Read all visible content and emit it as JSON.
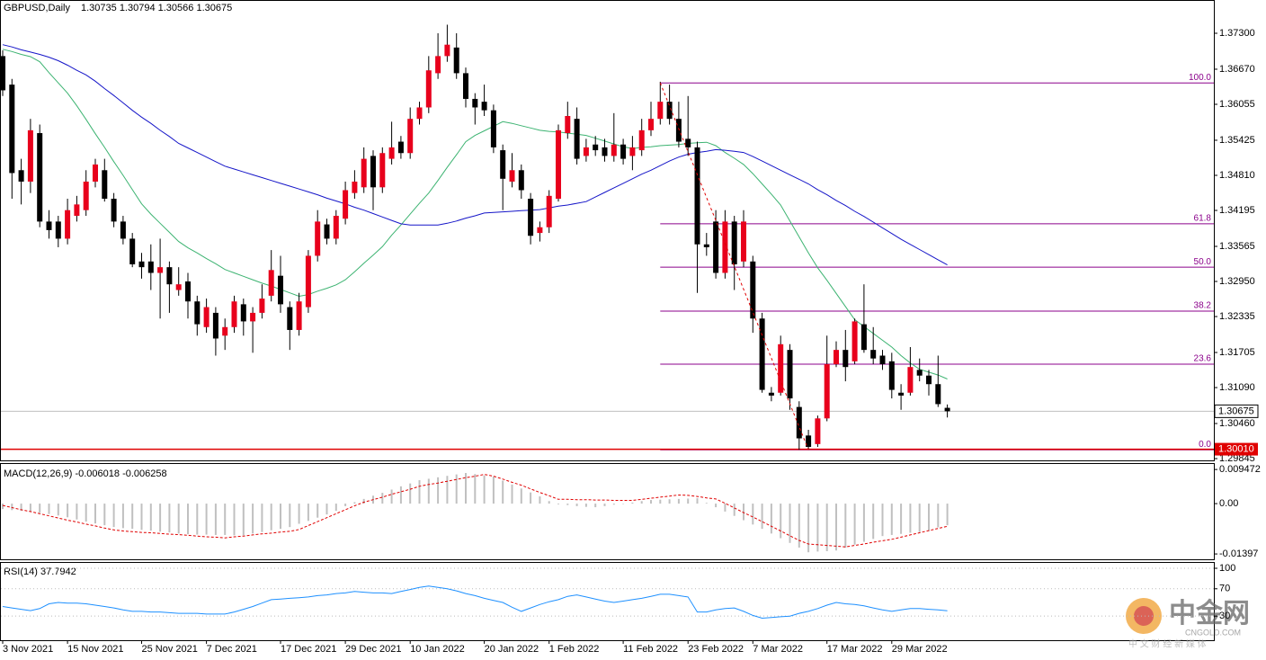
{
  "chart_data": [
    {
      "type": "candlestick",
      "title": "GBPUSD,Daily",
      "subtitle": "1.30735 1.30794 1.30566 1.30675",
      "categories": [
        "3 Nov 2021",
        null,
        null,
        null,
        null,
        null,
        null,
        "15 Nov 2021",
        null,
        null,
        null,
        null,
        null,
        null,
        null,
        "25 Nov 2021",
        null,
        null,
        null,
        null,
        null,
        null,
        "7 Dec 2021",
        null,
        null,
        null,
        null,
        null,
        null,
        null,
        "17 Dec 2021",
        null,
        null,
        null,
        null,
        null,
        null,
        "29 Dec 2021",
        null,
        null,
        null,
        null,
        null,
        null,
        "10 Jan 2022",
        null,
        null,
        null,
        null,
        null,
        null,
        null,
        "20 Jan 2022",
        null,
        null,
        null,
        null,
        null,
        null,
        "1 Feb 2022",
        null,
        null,
        null,
        null,
        null,
        null,
        null,
        "11 Feb 2022",
        null,
        null,
        null,
        null,
        null,
        null,
        "23 Feb 2022",
        null,
        null,
        null,
        null,
        null,
        null,
        "7 Mar 2022",
        null,
        null,
        null,
        null,
        null,
        null,
        null,
        "17 Mar 2022",
        null,
        null,
        null,
        null,
        null,
        null,
        "29 Mar 2022",
        null,
        null,
        null,
        null,
        null,
        null
      ],
      "open": [
        1.369,
        1.364,
        1.349,
        1.347,
        1.3555,
        1.34,
        1.34,
        1.337,
        1.341,
        1.342,
        1.347,
        1.349,
        1.344,
        1.34,
        1.337,
        1.333,
        1.333,
        1.331,
        1.332,
        1.328,
        1.3295,
        1.326,
        1.3215,
        1.324,
        1.32,
        1.3215,
        1.3255,
        1.3225,
        1.324,
        1.327,
        1.3305,
        1.325,
        1.321,
        1.325,
        1.334,
        1.3395,
        1.337,
        1.3405,
        1.345,
        1.346,
        1.3515,
        1.346,
        1.351,
        1.354,
        1.352,
        1.358,
        1.36,
        1.366,
        1.369,
        1.3705,
        1.366,
        1.3615,
        1.361,
        1.3595,
        1.3525,
        1.347,
        1.349,
        1.344,
        1.338,
        1.339,
        1.344,
        1.3555,
        1.358,
        1.3515,
        1.3535,
        1.353,
        1.3515,
        1.3535,
        1.3515,
        1.3525,
        1.356,
        1.358,
        1.361,
        1.358,
        1.3545,
        1.353,
        1.336,
        1.34,
        1.331,
        1.34,
        1.333,
        1.333,
        1.323,
        1.31,
        1.31,
        1.3175,
        1.3075,
        1.3025,
        1.301,
        1.3055,
        1.315,
        1.3175,
        1.3155,
        1.322,
        1.3175,
        1.3165,
        1.3155,
        1.31,
        1.31,
        1.314,
        1.313,
        1.3115,
        1.30735
      ],
      "high": [
        1.37,
        1.365,
        1.351,
        1.358,
        1.357,
        1.342,
        1.341,
        1.344,
        1.3445,
        1.349,
        1.351,
        1.351,
        1.345,
        1.341,
        1.338,
        1.3345,
        1.336,
        1.337,
        1.333,
        1.332,
        1.331,
        1.327,
        1.3265,
        1.325,
        1.323,
        1.327,
        1.3265,
        1.325,
        1.329,
        1.335,
        1.334,
        1.326,
        1.3275,
        1.335,
        1.342,
        1.3405,
        1.342,
        1.347,
        1.349,
        1.353,
        1.3525,
        1.353,
        1.3575,
        1.355,
        1.36,
        1.361,
        1.369,
        1.373,
        1.3745,
        1.373,
        1.367,
        1.3625,
        1.364,
        1.3605,
        1.3535,
        1.352,
        1.35,
        1.345,
        1.34,
        1.3455,
        1.357,
        1.361,
        1.36,
        1.3545,
        1.355,
        1.3545,
        1.359,
        1.3545,
        1.355,
        1.358,
        1.361,
        1.3645,
        1.364,
        1.361,
        1.362,
        1.354,
        1.338,
        1.342,
        1.342,
        1.341,
        1.342,
        1.334,
        1.324,
        1.311,
        1.32,
        1.3185,
        1.3085,
        1.3035,
        1.306,
        1.32,
        1.319,
        1.321,
        1.323,
        1.329,
        1.3215,
        1.3175,
        1.317,
        1.3115,
        1.318,
        1.316,
        1.314,
        1.3165,
        1.30794
      ],
      "low": [
        1.362,
        1.344,
        1.343,
        1.345,
        1.339,
        1.337,
        1.3355,
        1.336,
        1.34,
        1.341,
        1.346,
        1.3435,
        1.339,
        1.336,
        1.332,
        1.33,
        1.328,
        1.323,
        1.324,
        1.327,
        1.323,
        1.32,
        1.3205,
        1.3165,
        1.3175,
        1.3205,
        1.32,
        1.317,
        1.323,
        1.326,
        1.324,
        1.3175,
        1.32,
        1.324,
        1.333,
        1.336,
        1.336,
        1.3395,
        1.344,
        1.345,
        1.342,
        1.345,
        1.35,
        1.351,
        1.351,
        1.357,
        1.359,
        1.365,
        1.368,
        1.365,
        1.36,
        1.357,
        1.3585,
        1.352,
        1.342,
        1.346,
        1.344,
        1.336,
        1.3365,
        1.338,
        1.3435,
        1.3545,
        1.35,
        1.3505,
        1.3515,
        1.3505,
        1.3505,
        1.35,
        1.349,
        1.3515,
        1.355,
        1.357,
        1.357,
        1.353,
        1.3515,
        1.3275,
        1.334,
        1.33,
        1.33,
        1.328,
        1.332,
        1.3205,
        1.31,
        1.3085,
        1.3095,
        1.307,
        1.3,
        1.3,
        1.3005,
        1.305,
        1.3145,
        1.312,
        1.315,
        1.317,
        1.315,
        1.314,
        1.309,
        1.307,
        1.3095,
        1.312,
        1.3095,
        1.3075,
        1.30566
      ],
      "close": [
        1.363,
        1.3485,
        1.347,
        1.356,
        1.34,
        1.3385,
        1.337,
        1.342,
        1.343,
        1.347,
        1.35,
        1.344,
        1.34,
        1.337,
        1.3325,
        1.332,
        1.331,
        1.332,
        1.329,
        1.329,
        1.326,
        1.322,
        1.325,
        1.3195,
        1.3215,
        1.326,
        1.3225,
        1.324,
        1.3265,
        1.3315,
        1.3255,
        1.321,
        1.326,
        1.334,
        1.34,
        1.337,
        1.341,
        1.3455,
        1.347,
        1.351,
        1.346,
        1.352,
        1.353,
        1.352,
        1.358,
        1.36,
        1.3665,
        1.369,
        1.371,
        1.366,
        1.3615,
        1.36,
        1.3595,
        1.353,
        1.3475,
        1.349,
        1.3455,
        1.3375,
        1.339,
        1.3445,
        1.356,
        1.3585,
        1.351,
        1.353,
        1.3525,
        1.3515,
        1.3535,
        1.351,
        1.353,
        1.356,
        1.358,
        1.361,
        1.358,
        1.354,
        1.353,
        1.336,
        1.3355,
        1.331,
        1.34,
        1.3325,
        1.34,
        1.323,
        1.3105,
        1.3095,
        1.3185,
        1.309,
        1.302,
        1.3005,
        1.3055,
        1.315,
        1.3175,
        1.3145,
        1.3225,
        1.3175,
        1.316,
        1.315,
        1.3105,
        1.3095,
        1.3145,
        1.313,
        1.3115,
        1.308,
        1.30675
      ],
      "up_color": "#e8001c",
      "down_color": "#000000",
      "moving_averages": [
        {
          "color": "#3cb371",
          "values": [
            1.3702,
            1.3698,
            1.3693,
            1.3689,
            1.368,
            1.3661,
            1.3643,
            1.3625,
            1.3603,
            1.3579,
            1.3554,
            1.353,
            1.3505,
            1.3481,
            1.3456,
            1.3431,
            1.3413,
            1.3397,
            1.3381,
            1.3365,
            1.3354,
            1.3345,
            1.3335,
            1.3326,
            1.3316,
            1.331,
            1.3304,
            1.3298,
            1.3292,
            1.3287,
            1.3281,
            1.3275,
            1.3269,
            1.3272,
            1.3278,
            1.3283,
            1.3289,
            1.3298,
            1.3312,
            1.3327,
            1.3341,
            1.3356,
            1.3376,
            1.3394,
            1.3413,
            1.3432,
            1.345,
            1.3472,
            1.3495,
            1.3517,
            1.354,
            1.3551,
            1.3559,
            1.3567,
            1.3575,
            1.3572,
            1.3568,
            1.3564,
            1.356,
            1.3558,
            1.3557,
            1.3555,
            1.3553,
            1.3551,
            1.3546,
            1.3541,
            1.3536,
            1.3531,
            1.3528,
            1.353,
            1.3531,
            1.3533,
            1.3534,
            1.3535,
            1.3537,
            1.3538,
            1.3539,
            1.3533,
            1.3521,
            1.3511,
            1.35,
            1.3484,
            1.3466,
            1.3448,
            1.3429,
            1.3401,
            1.3373,
            1.3345,
            1.3319,
            1.3297,
            1.3274,
            1.3251,
            1.3228,
            1.3216,
            1.3204,
            1.3192,
            1.318,
            1.3165,
            1.3152,
            1.3141,
            1.3136,
            1.3131,
            1.3124
          ]
        },
        {
          "color": "#1515c8",
          "values": [
            1.371,
            1.3706,
            1.3701,
            1.3697,
            1.3693,
            1.3688,
            1.3682,
            1.3674,
            1.3665,
            1.3657,
            1.3646,
            1.3633,
            1.3621,
            1.3608,
            1.3595,
            1.3583,
            1.3572,
            1.356,
            1.3549,
            1.3537,
            1.3529,
            1.3521,
            1.3513,
            1.3505,
            1.3497,
            1.3492,
            1.3487,
            1.3482,
            1.3477,
            1.3472,
            1.3467,
            1.3462,
            1.3457,
            1.3452,
            1.3447,
            1.3441,
            1.3436,
            1.3431,
            1.3425,
            1.342,
            1.3414,
            1.3408,
            1.3402,
            1.3396,
            1.3394,
            1.3394,
            1.3394,
            1.3394,
            1.3397,
            1.3401,
            1.3406,
            1.341,
            1.3415,
            1.3416,
            1.3417,
            1.3418,
            1.3419,
            1.342,
            1.3421,
            1.3424,
            1.3427,
            1.3429,
            1.3432,
            1.3435,
            1.3443,
            1.3451,
            1.3459,
            1.3467,
            1.3475,
            1.3483,
            1.349,
            1.3498,
            1.3506,
            1.3513,
            1.3518,
            1.3521,
            1.3523,
            1.3526,
            1.3525,
            1.3523,
            1.3521,
            1.3514,
            1.3506,
            1.3498,
            1.349,
            1.3482,
            1.3474,
            1.3466,
            1.3456,
            1.3447,
            1.3437,
            1.3428,
            1.3418,
            1.3409,
            1.3399,
            1.3389,
            1.3379,
            1.3369,
            1.336,
            1.3351,
            1.3342,
            1.3333,
            1.3324
          ]
        }
      ],
      "fibonacci": {
        "color": "#8b008b",
        "levels": [
          {
            "value": 1.3643,
            "label": "100.0"
          },
          {
            "value": 1.3396,
            "label": "61.8"
          },
          {
            "value": 1.332,
            "label": "50.0"
          },
          {
            "value": 1.3243,
            "label": "38.2"
          },
          {
            "value": 1.315,
            "label": "23.6"
          },
          {
            "value": 1.3,
            "label": "0.0"
          }
        ]
      },
      "trend_line": {
        "color": "#e00000",
        "values": [
          1.3643,
          1.3
        ]
      },
      "current_price": {
        "value": 1.30675,
        "label": "1.30675"
      },
      "marked_level": {
        "value": 1.3001,
        "label": "1.30010",
        "color": "#e00000"
      },
      "ylim": [
        1.29814,
        1.37883
      ],
      "yticks": [
        {
          "value": 1.373,
          "label": "1.37300"
        },
        {
          "value": 1.3667,
          "label": "1.36670"
        },
        1.36055,
        1.35425,
        {
          "value": 1.3481,
          "label": "1.34810"
        },
        1.34195,
        1.33565,
        {
          "value": 1.3295,
          "label": "1.32950"
        },
        1.32335,
        1.31705,
        {
          "value": 1.3109,
          "label": "1.31090"
        },
        {
          "value": 1.3046,
          "label": "1.30460"
        },
        1.29845
      ]
    },
    {
      "type": "macd",
      "title": "MACD(12,26,9) -0.006018 -0.006258",
      "values": [
        -0.0015,
        -0.0018,
        -0.002,
        -0.0023,
        -0.0026,
        -0.0029,
        -0.0033,
        -0.0038,
        -0.0044,
        -0.005,
        -0.0055,
        -0.006,
        -0.0065,
        -0.0068,
        -0.007,
        -0.0073,
        -0.0075,
        -0.0078,
        -0.008,
        -0.0083,
        -0.0085,
        -0.0086,
        -0.0086,
        -0.0087,
        -0.0087,
        -0.0088,
        -0.0088,
        -0.0083,
        -0.0079,
        -0.0074,
        -0.007,
        -0.0065,
        -0.0056,
        -0.0048,
        -0.0039,
        -0.003,
        -0.002,
        -0.0007,
        0.0004,
        0.0013,
        0.0022,
        0.003,
        0.0039,
        0.0048,
        0.0056,
        0.0065,
        0.0069,
        0.0073,
        0.0077,
        0.0081,
        0.0085,
        0.0082,
        0.0078,
        0.0075,
        0.0064,
        0.0053,
        0.0042,
        0.0031,
        0.002,
        0.0007,
        -0.0002,
        -0.0004,
        -0.0007,
        -0.0009,
        -0.001,
        -0.0007,
        -0.0003,
        0,
        0.0003,
        0.0007,
        0.001,
        0.0011,
        0.0012,
        0.0013,
        0.0014,
        0.0015,
        0.0002,
        -0.001,
        -0.0022,
        -0.0034,
        -0.0046,
        -0.0058,
        -0.007,
        -0.0083,
        -0.0096,
        -0.0109,
        -0.0122,
        -0.0135,
        -0.0133,
        -0.0132,
        -0.013,
        -0.0122,
        -0.0114,
        -0.0106,
        -0.0098,
        -0.009,
        -0.0087,
        -0.0084,
        -0.0081,
        -0.0079,
        -0.0076,
        -0.0066,
        -0.006
      ],
      "color": "#c0c0c0",
      "signal": {
        "color": "#e00000",
        "values": [
          -0.0005,
          -0.0011,
          -0.0017,
          -0.0022,
          -0.0028,
          -0.0034,
          -0.004,
          -0.0046,
          -0.0051,
          -0.0057,
          -0.0062,
          -0.0068,
          -0.0073,
          -0.0076,
          -0.0078,
          -0.008,
          -0.0081,
          -0.0083,
          -0.0085,
          -0.0086,
          -0.0088,
          -0.009,
          -0.0092,
          -0.0093,
          -0.0095,
          -0.0092,
          -0.009,
          -0.0087,
          -0.0084,
          -0.0082,
          -0.0079,
          -0.0077,
          -0.0072,
          -0.0061,
          -0.005,
          -0.0039,
          -0.0028,
          -0.0017,
          -0.0006,
          0.0004,
          0.0011,
          0.0018,
          0.0026,
          0.0033,
          0.004,
          0.0048,
          0.0053,
          0.0057,
          0.0062,
          0.0067,
          0.0072,
          0.0076,
          0.0081,
          0.0076,
          0.0068,
          0.0059,
          0.0051,
          0.0041,
          0.0031,
          0.0022,
          0.0012,
          0.0012,
          0.0011,
          0.0011,
          0.001,
          0.001,
          0.0009,
          0.0009,
          0.0009,
          0.0012,
          0.0015,
          0.0018,
          0.0021,
          0.0024,
          0.0023,
          0.002,
          0.0016,
          0.0013,
          0.0001,
          -0.0012,
          -0.0025,
          -0.0037,
          -0.005,
          -0.0063,
          -0.0076,
          -0.0089,
          -0.0102,
          -0.0112,
          -0.0114,
          -0.0116,
          -0.0118,
          -0.012,
          -0.0116,
          -0.0112,
          -0.0107,
          -0.0103,
          -0.0099,
          -0.0093,
          -0.0087,
          -0.0081,
          -0.0075,
          -0.0069,
          -0.0063
        ]
      },
      "ylim": [
        -0.01545,
        0.011
      ],
      "yticks": [
        0.009472,
        {
          "value": 0,
          "label": "0.00"
        },
        -0.01397
      ]
    },
    {
      "type": "line",
      "title": "RSI(14) 37.7942",
      "values": [
        44,
        42,
        40,
        38,
        41,
        48,
        50,
        49,
        49,
        48,
        46,
        44,
        42,
        39,
        37,
        37,
        36,
        36,
        35,
        34,
        34,
        34,
        33,
        33,
        33,
        36,
        40,
        44,
        49,
        54,
        55,
        56,
        57,
        58,
        60,
        61,
        63,
        64,
        66,
        65,
        64,
        64,
        63,
        66,
        69,
        72,
        74,
        72,
        70,
        67,
        63,
        60,
        56,
        53,
        50,
        43,
        37,
        42,
        47,
        51,
        54,
        59,
        61,
        58,
        55,
        52,
        50,
        52,
        54,
        56,
        59,
        62,
        62,
        60,
        58,
        36,
        36,
        39,
        41,
        42,
        37,
        31,
        27,
        28,
        29,
        30,
        34,
        37,
        41,
        46,
        50,
        48,
        47,
        45,
        42,
        39,
        37,
        39,
        41,
        41,
        40,
        39,
        37.8
      ],
      "color": "#1e90ff",
      "ylim": [
        -5.3,
        107.9
      ],
      "yticks": [
        100,
        70,
        30
      ]
    }
  ],
  "watermark": {
    "brand": "中金网",
    "site": "CNGOLD.COM",
    "tagline": "中 文 财 经 新 媒 体"
  }
}
